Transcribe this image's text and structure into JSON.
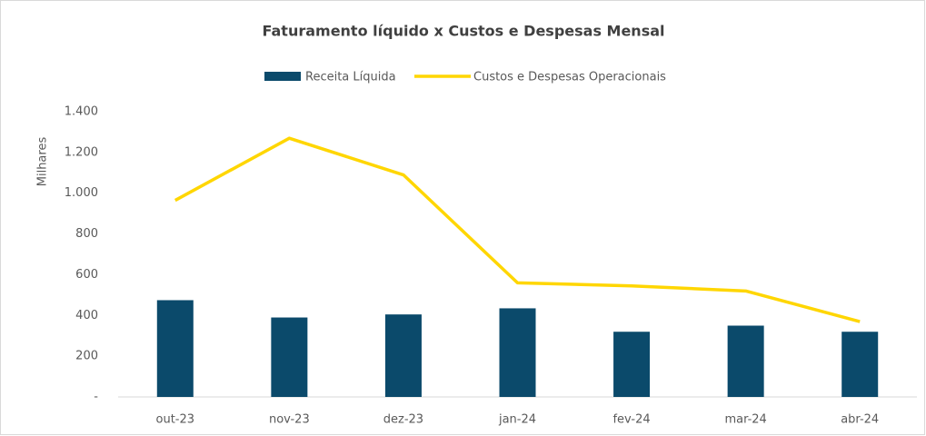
{
  "chart_data": {
    "type": "bar",
    "title": "Faturamento líquido x Custos e Despesas Mensal",
    "y_label": "Milhares",
    "categories": [
      "out-23",
      "nov-23",
      "dez-23",
      "jan-24",
      "fev-24",
      "mar-24",
      "abr-24"
    ],
    "series": [
      {
        "name": "Receita Líquida",
        "type": "bar",
        "color": "#0b4a6b",
        "values": [
          475,
          390,
          405,
          435,
          320,
          350,
          320
        ]
      },
      {
        "name": "Custos e Despesas Operacionais",
        "type": "line",
        "color": "#ffd600",
        "values": [
          965,
          1270,
          1090,
          560,
          545,
          520,
          370
        ]
      }
    ],
    "ylim": [
      0,
      1400
    ],
    "yticks": [
      {
        "value": 0,
        "label": "-"
      },
      200,
      400,
      600,
      800,
      {
        "value": 1000,
        "label": "1.000"
      },
      {
        "value": 1200,
        "label": "1.200"
      },
      {
        "value": 1400,
        "label": "1.400"
      }
    ],
    "grid": false,
    "legend": "top"
  }
}
